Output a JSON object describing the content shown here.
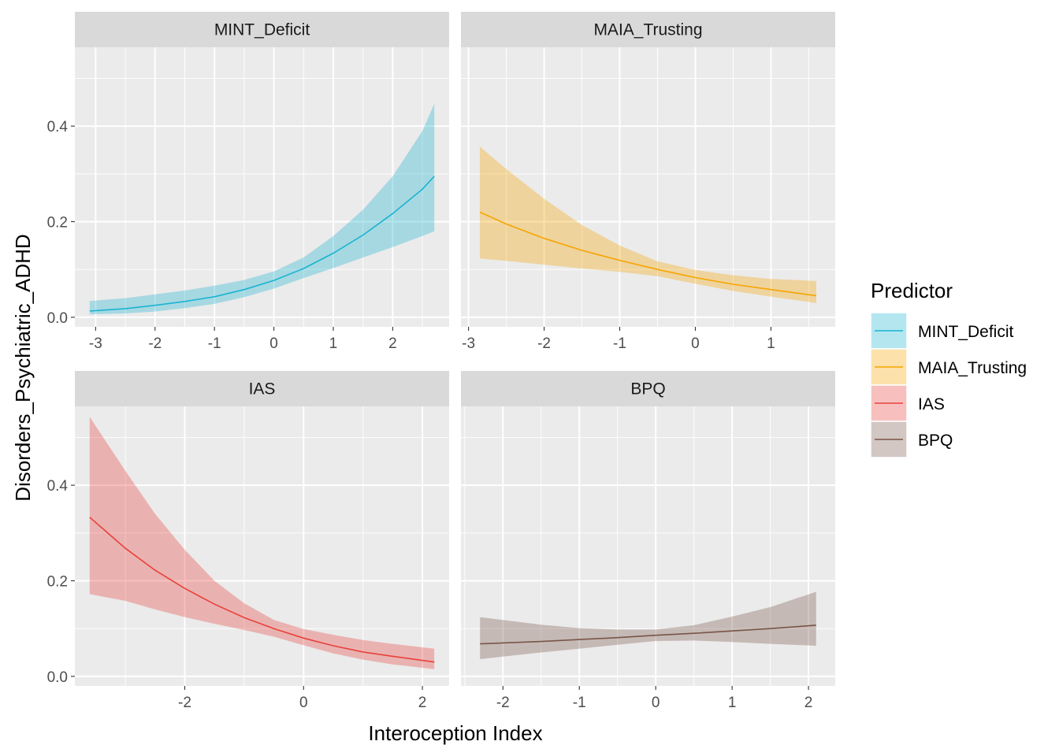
{
  "chart_data": {
    "type": "line",
    "xlabel": "Interoception Index",
    "ylabel": "Disorders_Psychiatric_ADHD",
    "legend": {
      "title": "Predictor",
      "position": "right",
      "entries": [
        "MINT_Deficit",
        "MAIA_Trusting",
        "IAS",
        "BPQ"
      ]
    },
    "colors": {
      "MINT_Deficit": "#1ab3d1",
      "MAIA_Trusting": "#f5a500",
      "IAS": "#e8413b",
      "BPQ": "#7a5548",
      "panel_bg": "#ebebeb",
      "strip_bg": "#d9d9d9",
      "grid": "#ffffff"
    },
    "grid": true,
    "y_ticks": [
      0.0,
      0.2,
      0.4
    ],
    "y_tick_labels": [
      "0.0",
      "0.2",
      "0.4"
    ],
    "ylim": [
      -0.02,
      0.565
    ],
    "panels": [
      {
        "name": "MINT_Deficit",
        "xlim": [
          -3.35,
          2.95
        ],
        "x_ticks": [
          -3,
          -2,
          -1,
          0,
          1,
          2
        ],
        "x_tick_labels": [
          "-3",
          "-2",
          "-1",
          "0",
          "1",
          "2"
        ],
        "x": [
          -3.1,
          -2.5,
          -2.0,
          -1.5,
          -1.0,
          -0.5,
          0.0,
          0.5,
          1.0,
          1.5,
          2.0,
          2.5,
          2.7
        ],
        "y": [
          0.013,
          0.018,
          0.025,
          0.033,
          0.043,
          0.058,
          0.077,
          0.102,
          0.134,
          0.172,
          0.217,
          0.268,
          0.295
        ],
        "lower": [
          0.006,
          0.008,
          0.012,
          0.019,
          0.028,
          0.042,
          0.06,
          0.082,
          0.103,
          0.125,
          0.147,
          0.17,
          0.18
        ],
        "upper": [
          0.034,
          0.04,
          0.048,
          0.056,
          0.066,
          0.078,
          0.096,
          0.125,
          0.17,
          0.225,
          0.295,
          0.39,
          0.447
        ]
      },
      {
        "name": "MAIA_Trusting",
        "xlim": [
          -3.1,
          1.85
        ],
        "x_ticks": [
          -3,
          -2,
          -1,
          0,
          1
        ],
        "x_tick_labels": [
          "-3",
          "-2",
          "-1",
          "0",
          "1"
        ],
        "x": [
          -2.85,
          -2.5,
          -2.0,
          -1.5,
          -1.0,
          -0.5,
          0.0,
          0.5,
          1.0,
          1.6
        ],
        "y": [
          0.22,
          0.195,
          0.165,
          0.14,
          0.119,
          0.1,
          0.083,
          0.069,
          0.058,
          0.045
        ],
        "lower": [
          0.123,
          0.118,
          0.11,
          0.102,
          0.095,
          0.086,
          0.07,
          0.055,
          0.043,
          0.03
        ],
        "upper": [
          0.357,
          0.31,
          0.248,
          0.193,
          0.15,
          0.117,
          0.099,
          0.088,
          0.08,
          0.076
        ]
      },
      {
        "name": "IAS",
        "xlim": [
          -3.85,
          2.45
        ],
        "x_ticks": [
          -2,
          0,
          2
        ],
        "x_tick_labels": [
          "-2",
          "0",
          "2"
        ],
        "x": [
          -3.6,
          -3.0,
          -2.5,
          -2.0,
          -1.5,
          -1.0,
          -0.5,
          0.0,
          0.5,
          1.0,
          1.5,
          2.2
        ],
        "y": [
          0.333,
          0.268,
          0.222,
          0.184,
          0.151,
          0.123,
          0.1,
          0.08,
          0.064,
          0.051,
          0.042,
          0.03
        ],
        "lower": [
          0.172,
          0.158,
          0.14,
          0.124,
          0.11,
          0.097,
          0.083,
          0.065,
          0.048,
          0.035,
          0.025,
          0.015
        ],
        "upper": [
          0.543,
          0.43,
          0.34,
          0.265,
          0.2,
          0.153,
          0.118,
          0.099,
          0.087,
          0.076,
          0.068,
          0.058
        ]
      },
      {
        "name": "BPQ",
        "xlim": [
          -2.55,
          2.35
        ],
        "x_ticks": [
          -2,
          -1,
          0,
          1,
          2
        ],
        "x_tick_labels": [
          "-2",
          "-1",
          "0",
          "1",
          "2"
        ],
        "x": [
          -2.3,
          -1.5,
          -1.0,
          -0.5,
          0.0,
          0.5,
          1.0,
          1.5,
          2.1
        ],
        "y": [
          0.068,
          0.073,
          0.077,
          0.081,
          0.086,
          0.09,
          0.095,
          0.1,
          0.107
        ],
        "lower": [
          0.036,
          0.05,
          0.058,
          0.066,
          0.074,
          0.075,
          0.072,
          0.068,
          0.064
        ],
        "upper": [
          0.124,
          0.108,
          0.101,
          0.098,
          0.098,
          0.107,
          0.125,
          0.145,
          0.177
        ]
      }
    ]
  }
}
